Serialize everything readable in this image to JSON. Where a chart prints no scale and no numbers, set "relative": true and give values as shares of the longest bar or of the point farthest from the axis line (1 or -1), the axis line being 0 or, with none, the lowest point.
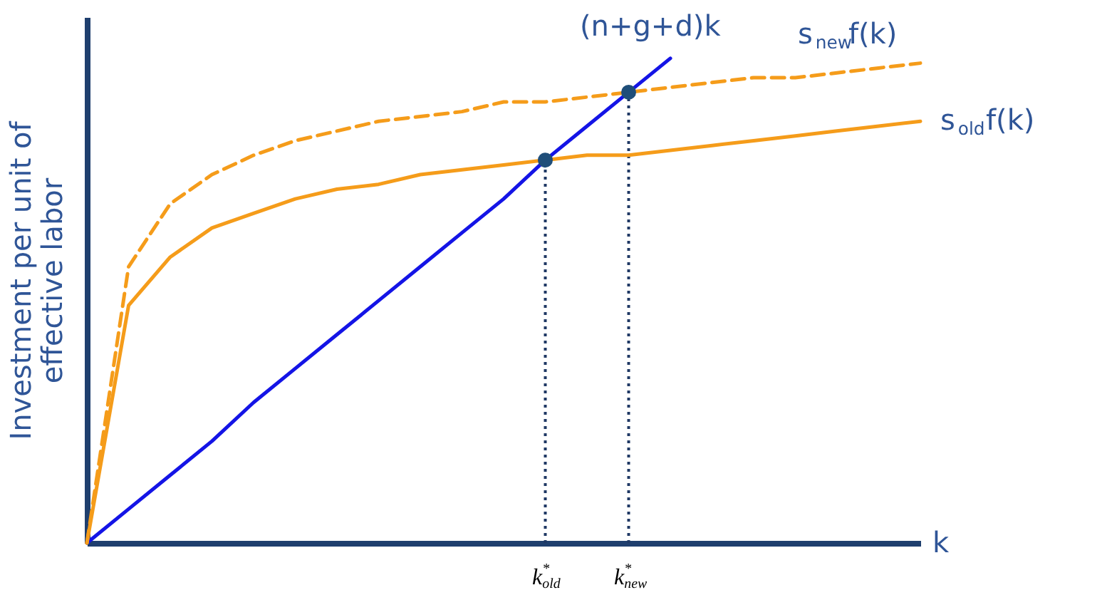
{
  "chart_data": {
    "type": "line",
    "relative": true,
    "ylabel": "Investment per unit of effective labor",
    "xlabel": "k",
    "categories": [
      null,
      null,
      null,
      null,
      null,
      null,
      null,
      null,
      null,
      null,
      null,
      "k$^{*}$$_{old}$",
      null,
      "k$^{*}$$_{new}$",
      null,
      null,
      null,
      null,
      null,
      null,
      null
    ],
    "series": [
      {
        "name": "(n+g+d)k",
        "color": "#1414e6",
        "line_style": "solid",
        "values": [
          0,
          0.07,
          0.14,
          0.21,
          0.29,
          0.36,
          0.43,
          0.5,
          0.57,
          0.64,
          0.71,
          0.79,
          0.86,
          0.93,
          1.0,
          null,
          null,
          null,
          null,
          null,
          null
        ]
      },
      {
        "name": "s$_{new}$f(k)",
        "color": "#f59c1a",
        "line_style": "dashed",
        "values": [
          0,
          0.57,
          0.7,
          0.76,
          0.8,
          0.83,
          0.85,
          0.87,
          0.88,
          0.89,
          0.91,
          0.91,
          0.92,
          0.93,
          0.94,
          0.95,
          0.96,
          0.96,
          0.97,
          0.98,
          0.99
        ]
      },
      {
        "name": "s$_{old}$f(k)",
        "color": "#f59c1a",
        "line_style": "solid",
        "values": [
          0,
          0.49,
          0.59,
          0.65,
          0.68,
          0.71,
          0.73,
          0.74,
          0.76,
          0.77,
          0.78,
          0.79,
          0.8,
          0.8,
          0.81,
          0.82,
          0.83,
          0.84,
          0.85,
          0.86,
          0.87
        ]
      },
      {
        "type": "scatter",
        "color": "#1f4e79",
        "marker": "circle",
        "values": [
          null,
          null,
          null,
          null,
          null,
          null,
          null,
          null,
          null,
          null,
          null,
          0.79,
          null,
          0.93,
          null,
          null,
          null,
          null,
          null,
          null,
          null
        ]
      }
    ],
    "ref_lines": [
      {
        "axis": "x",
        "value": "k$^{*}$$_{old}$",
        "color": "#1f3864",
        "line_style": "dotted"
      },
      {
        "axis": "x",
        "value": "k$^{*}$$_{new}$",
        "color": "#1f3864",
        "line_style": "dotted"
      }
    ],
    "grid": false
  }
}
